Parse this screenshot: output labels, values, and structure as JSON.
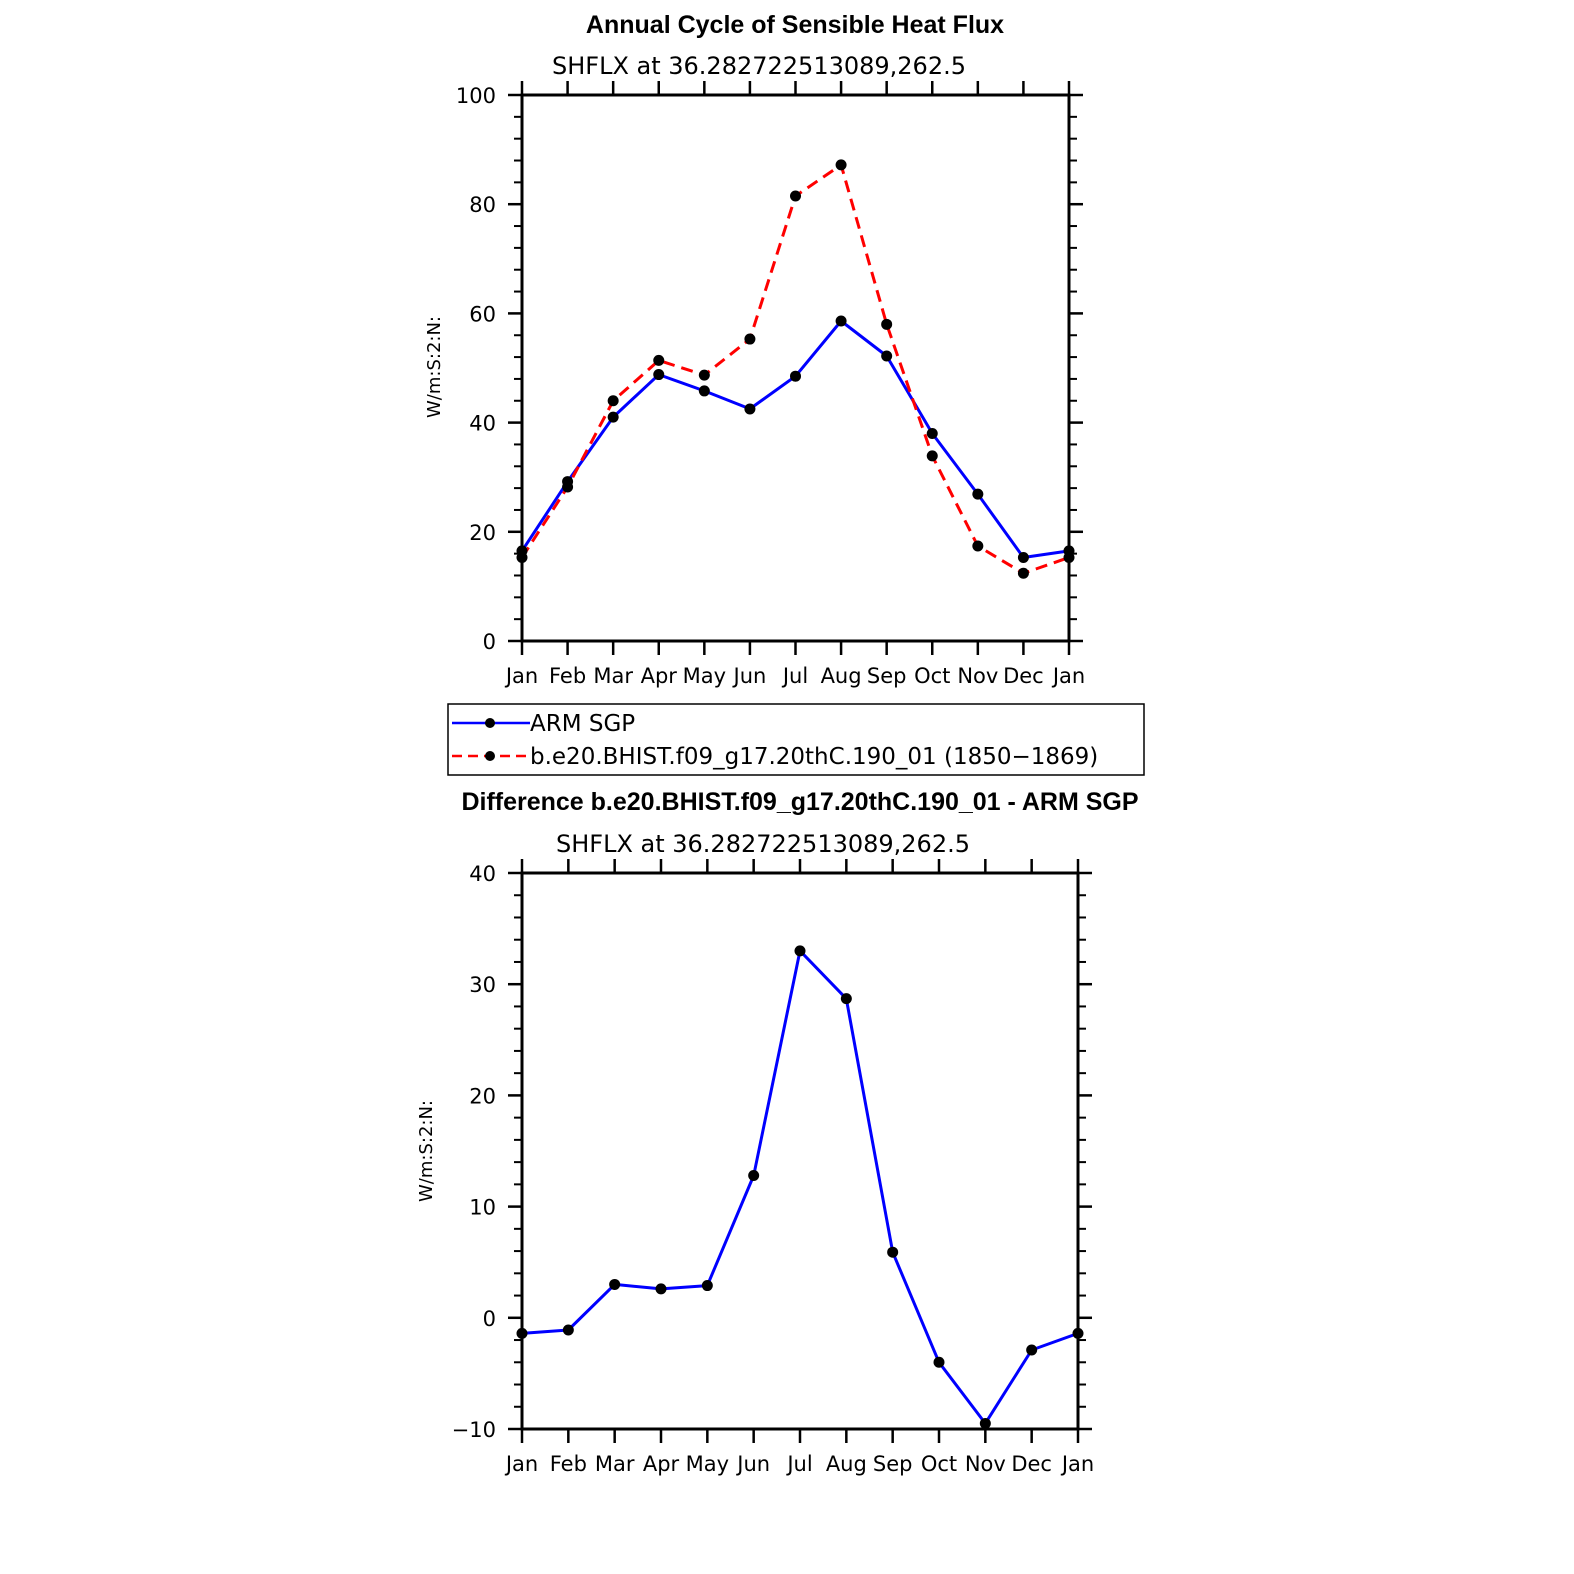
{
  "chart_data": [
    {
      "type": "line",
      "title": "Annual Cycle of Sensible Heat Flux",
      "subtitle": "SHFLX at 36.282722513089,262.5",
      "ylabel": "W/m:S:2:N:",
      "xlabel": "",
      "categories": [
        "Jan",
        "Feb",
        "Mar",
        "Apr",
        "May",
        "Jun",
        "Jul",
        "Aug",
        "Sep",
        "Oct",
        "Nov",
        "Dec",
        "Jan"
      ],
      "ylim": [
        0,
        100
      ],
      "yticks": [
        "0",
        "20",
        "40",
        "60",
        "80",
        "100"
      ],
      "series": [
        {
          "name": "ARM SGP",
          "color": "#0000ff",
          "dash": "solid",
          "values": [
            16.5,
            29.2,
            41.0,
            48.8,
            45.8,
            42.5,
            48.5,
            58.6,
            52.2,
            38.0,
            26.9,
            15.3,
            16.5
          ]
        },
        {
          "name": "b.e20.BHIST.f09_g17.20thC.190_01 (1850−1869)",
          "color": "#ff0000",
          "dash": "dashed",
          "values": [
            15.3,
            28.2,
            44.0,
            51.4,
            48.7,
            55.3,
            81.5,
            87.2,
            58.0,
            33.9,
            17.4,
            12.4,
            15.3
          ]
        }
      ]
    },
    {
      "type": "line",
      "title": "Difference b.e20.BHIST.f09_g17.20thC.190_01 - ARM SGP",
      "subtitle": "SHFLX at 36.282722513089,262.5",
      "ylabel": "W/m:S:2:N:",
      "xlabel": "",
      "categories": [
        "Jan",
        "Feb",
        "Mar",
        "Apr",
        "May",
        "Jun",
        "Jul",
        "Aug",
        "Sep",
        "Oct",
        "Nov",
        "Dec",
        "Jan"
      ],
      "ylim": [
        -10,
        40
      ],
      "yticks": [
        "−10",
        "0",
        "10",
        "20",
        "30",
        "40"
      ],
      "series": [
        {
          "color": "#0000ff",
          "dash": "solid",
          "values": [
            -1.4,
            -1.1,
            3.0,
            2.6,
            2.9,
            12.8,
            33.0,
            28.7,
            5.9,
            -4.0,
            -9.5,
            -2.9,
            -1.4
          ]
        }
      ]
    }
  ]
}
